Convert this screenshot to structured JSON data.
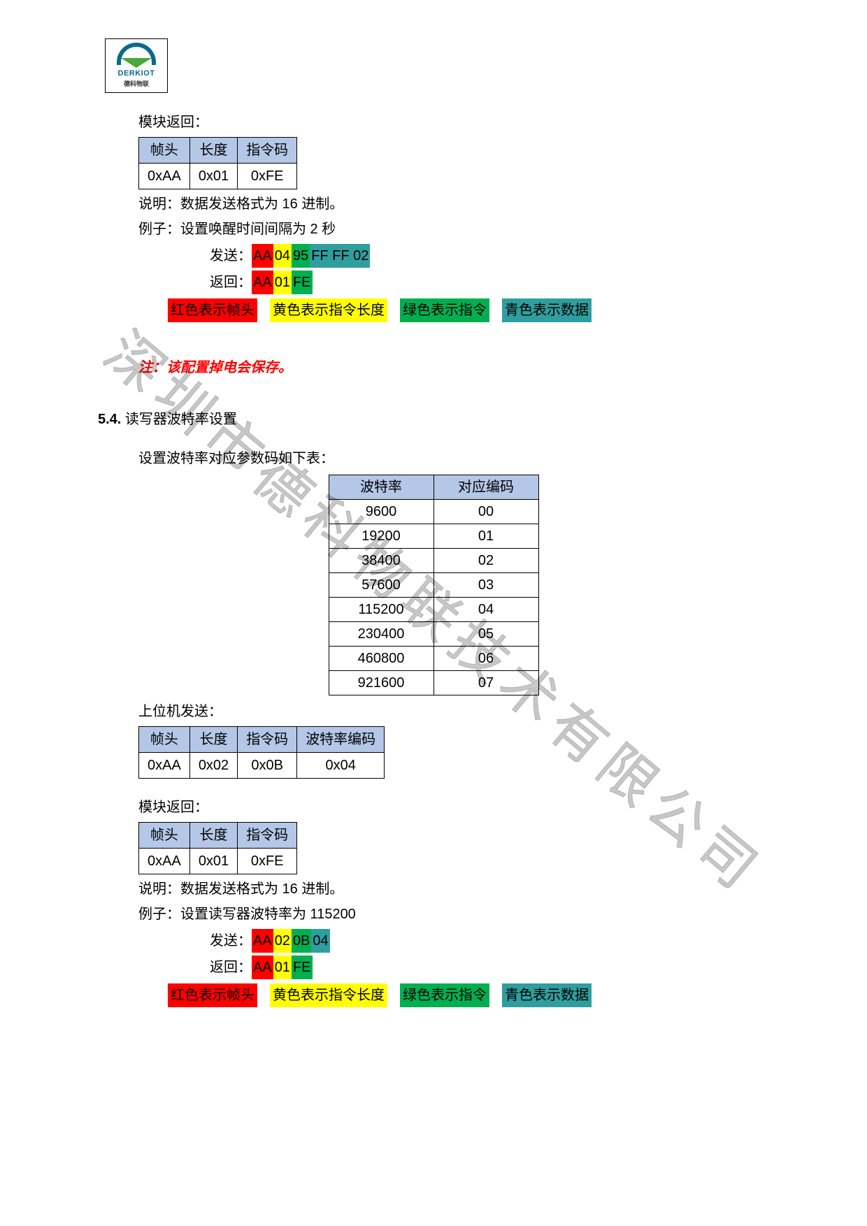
{
  "logo": {
    "brand": "DERKIOT",
    "sub": "德科物联"
  },
  "watermark": "深圳市德科物联技术有限公司",
  "colors": {
    "red": "#ff0000",
    "yellow": "#ffff00",
    "green": "#00b050",
    "teal": "#2f9e9e",
    "header_blue": "#b4c7e7"
  },
  "sec1": {
    "ret_label": "模块返回：",
    "ret_table": {
      "headers": [
        "帧头",
        "长度",
        "指令码"
      ],
      "row": [
        "0xAA",
        "0x01",
        "0xFE"
      ]
    },
    "note_label": "说明：",
    "note_text": "数据发送格式为 16 进制。",
    "ex_label": "例子：",
    "ex_text": "设置唤醒时间间隔为 2 秒",
    "send_label": "发送：",
    "send_bytes": [
      {
        "t": "AA",
        "c": "c-red"
      },
      {
        "t": "04",
        "c": "c-yellow"
      },
      {
        "t": "95",
        "c": "c-green"
      },
      {
        "t": "FF FF 02",
        "c": "c-tealtxt"
      }
    ],
    "recv_label": "返回：",
    "recv_bytes": [
      {
        "t": "AA",
        "c": "c-red"
      },
      {
        "t": "01",
        "c": "c-yellow"
      },
      {
        "t": "FE",
        "c": "c-green"
      }
    ],
    "legend": [
      {
        "t": "红色表示帧头",
        "c": "c-red"
      },
      {
        "t": "黄色表示指令长度",
        "c": "c-yellow"
      },
      {
        "t": "绿色表示指令",
        "c": "c-green"
      },
      {
        "t": "青色表示数据",
        "c": "c-tealtxt"
      }
    ],
    "note_red": "注：该配置掉电会保存。"
  },
  "sec2": {
    "title_num": "5.4.",
    "title_text": " 读写器波特率设置",
    "desc": "设置波特率对应参数码如下表：",
    "baud_table": {
      "headers": [
        "波特率",
        "对应编码"
      ],
      "rows": [
        [
          "9600",
          "00"
        ],
        [
          "19200",
          "01"
        ],
        [
          "38400",
          "02"
        ],
        [
          "57600",
          "03"
        ],
        [
          "115200",
          "04"
        ],
        [
          "230400",
          "05"
        ],
        [
          "460800",
          "06"
        ],
        [
          "921600",
          "07"
        ]
      ]
    },
    "host_label": "上位机发送：",
    "host_table": {
      "headers": [
        "帧头",
        "长度",
        "指令码",
        "波特率编码"
      ],
      "row": [
        "0xAA",
        "0x02",
        "0x0B",
        "0x04"
      ]
    },
    "ret_label": "模块返回：",
    "ret_table": {
      "headers": [
        "帧头",
        "长度",
        "指令码"
      ],
      "row": [
        "0xAA",
        "0x01",
        "0xFE"
      ]
    },
    "note_label": "说明：",
    "note_text": "数据发送格式为 16 进制。",
    "ex_label": "例子：",
    "ex_text": "设置读写器波特率为 115200",
    "send_label": "发送：",
    "send_bytes": [
      {
        "t": "AA",
        "c": "c-red"
      },
      {
        "t": "02",
        "c": "c-yellow"
      },
      {
        "t": "0B",
        "c": "c-green"
      },
      {
        "t": "04",
        "c": "c-tealtxt"
      }
    ],
    "recv_label": "返回：",
    "recv_bytes": [
      {
        "t": "AA",
        "c": "c-red"
      },
      {
        "t": "01",
        "c": "c-yellow"
      },
      {
        "t": "FE",
        "c": "c-green"
      }
    ],
    "legend": [
      {
        "t": "红色表示帧头",
        "c": "c-red"
      },
      {
        "t": "黄色表示指令长度",
        "c": "c-yellow"
      },
      {
        "t": "绿色表示指令",
        "c": "c-green"
      },
      {
        "t": "青色表示数据",
        "c": "c-tealtxt"
      }
    ]
  }
}
